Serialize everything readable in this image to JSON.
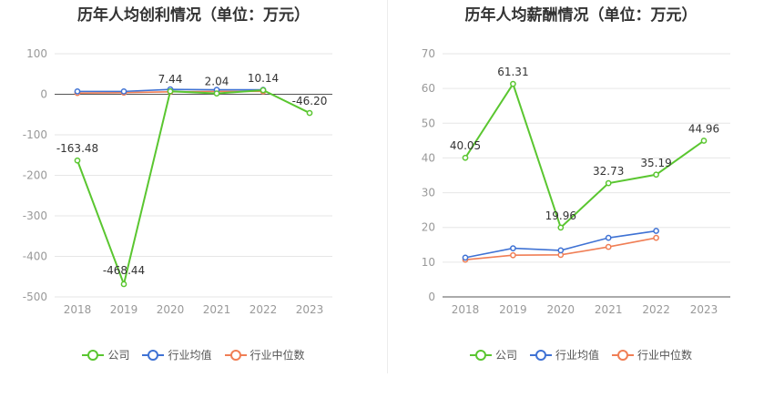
{
  "chart_data": [
    {
      "type": "line",
      "title": "历年人均创利情况（单位：万元）",
      "categories": [
        "2018",
        "2019",
        "2020",
        "2021",
        "2022",
        "2023"
      ],
      "ylim": [
        -500,
        100
      ],
      "yticks": [
        100,
        0,
        -100,
        -200,
        -300,
        -400,
        -500
      ],
      "grid": true,
      "legend_position": "bottom",
      "series": [
        {
          "name": "公司",
          "color": "#5ac630",
          "values": [
            -163.48,
            -468.44,
            7.44,
            2.04,
            10.14,
            -46.2
          ],
          "labels": [
            "-163.48",
            "-468.44",
            "7.44",
            "2.04",
            "10.14",
            "-46.20"
          ]
        },
        {
          "name": "行业均值",
          "color": "#3f72d4",
          "values": [
            7,
            7,
            12,
            11,
            11,
            null
          ]
        },
        {
          "name": "行业中位数",
          "color": "#f07e55",
          "values": [
            3,
            4,
            6,
            7,
            7,
            null
          ]
        }
      ]
    },
    {
      "type": "line",
      "title": "历年人均薪酬情况（单位：万元）",
      "categories": [
        "2018",
        "2019",
        "2020",
        "2021",
        "2022",
        "2023"
      ],
      "ylim": [
        0,
        70
      ],
      "yticks": [
        70,
        60,
        50,
        40,
        30,
        20,
        10,
        0
      ],
      "grid": true,
      "legend_position": "bottom",
      "series": [
        {
          "name": "公司",
          "color": "#5ac630",
          "values": [
            40.05,
            61.31,
            19.96,
            32.73,
            35.19,
            44.96
          ],
          "labels": [
            "40.05",
            "61.31",
            "19.96",
            "32.73",
            "35.19",
            "44.96"
          ]
        },
        {
          "name": "行业均值",
          "color": "#3f72d4",
          "values": [
            11.3,
            14.0,
            13.4,
            17.0,
            19.0,
            null
          ]
        },
        {
          "name": "行业中位数",
          "color": "#f07e55",
          "values": [
            10.7,
            12.0,
            12.1,
            14.4,
            17.0,
            null
          ]
        }
      ]
    }
  ]
}
